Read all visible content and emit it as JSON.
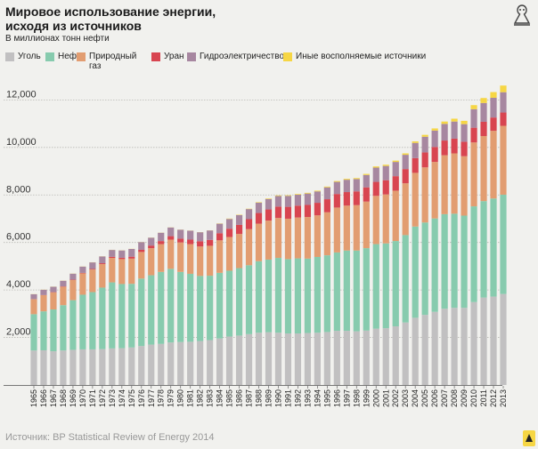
{
  "title": "Мировое использование энергии,\nисходя из источников",
  "subtitle": "В миллионах тонн нефти",
  "source": "Источник: BP Statistical Review of Energy 2014",
  "chart_data": {
    "type": "bar",
    "stacked": true,
    "categories": [
      "1965",
      "1966",
      "1967",
      "1968",
      "1969",
      "1970",
      "1971",
      "1972",
      "1973",
      "1974",
      "1975",
      "1976",
      "1977",
      "1978",
      "1979",
      "1980",
      "1981",
      "1982",
      "1983",
      "1984",
      "1985",
      "1986",
      "1987",
      "1988",
      "1989",
      "1990",
      "1991",
      "1992",
      "1993",
      "1994",
      "1995",
      "1996",
      "1997",
      "1998",
      "1999",
      "2000",
      "2001",
      "2002",
      "2003",
      "2004",
      "2005",
      "2006",
      "2007",
      "2008",
      "2009",
      "2010",
      "2011",
      "2012",
      "2013"
    ],
    "ylim": [
      0,
      12800
    ],
    "yticks": [
      2000,
      4000,
      6000,
      8000,
      10000,
      12000
    ],
    "ytick_labels": [
      "2,000",
      "4,000",
      "6,000",
      "8,000",
      "10,000",
      "12,000"
    ],
    "grid": true,
    "legend_position": "top",
    "series": [
      {
        "name": "Уголь",
        "color": "#c1c0c1",
        "values": [
          1450,
          1460,
          1420,
          1450,
          1480,
          1500,
          1500,
          1510,
          1540,
          1550,
          1580,
          1640,
          1700,
          1730,
          1790,
          1810,
          1820,
          1850,
          1890,
          1960,
          2040,
          2080,
          2140,
          2200,
          2220,
          2200,
          2170,
          2170,
          2190,
          2200,
          2230,
          2280,
          2280,
          2260,
          2290,
          2370,
          2390,
          2470,
          2630,
          2830,
          2950,
          3080,
          3210,
          3250,
          3250,
          3490,
          3680,
          3720,
          3830
        ]
      },
      {
        "name": "Нефть",
        "color": "#87cbae",
        "values": [
          1530,
          1640,
          1760,
          1910,
          2090,
          2300,
          2410,
          2590,
          2780,
          2700,
          2680,
          2840,
          2920,
          3030,
          3100,
          2950,
          2860,
          2740,
          2710,
          2760,
          2770,
          2840,
          2900,
          3010,
          3060,
          3150,
          3130,
          3160,
          3130,
          3190,
          3230,
          3300,
          3380,
          3400,
          3470,
          3560,
          3570,
          3590,
          3680,
          3840,
          3890,
          3930,
          3980,
          3960,
          3880,
          4030,
          4060,
          4130,
          4180
        ]
      },
      {
        "name": "Природный газ",
        "color": "#e29d71",
        "values": [
          630,
          680,
          720,
          780,
          850,
          900,
          950,
          990,
          1030,
          1050,
          1060,
          1120,
          1140,
          1170,
          1230,
          1240,
          1250,
          1240,
          1260,
          1370,
          1420,
          1440,
          1520,
          1580,
          1640,
          1680,
          1700,
          1720,
          1750,
          1750,
          1810,
          1890,
          1890,
          1910,
          1960,
          2030,
          2060,
          2120,
          2180,
          2260,
          2320,
          2380,
          2480,
          2540,
          2500,
          2690,
          2740,
          2850,
          2900
        ]
      },
      {
        "name": "Уран",
        "color": "#d84550",
        "values": [
          5,
          7,
          10,
          12,
          15,
          18,
          26,
          35,
          45,
          55,
          81,
          90,
          110,
          128,
          145,
          160,
          190,
          220,
          250,
          300,
          350,
          380,
          420,
          450,
          470,
          480,
          500,
          500,
          510,
          530,
          550,
          570,
          570,
          580,
          600,
          590,
          600,
          610,
          600,
          620,
          630,
          630,
          620,
          620,
          610,
          620,
          600,
          560,
          560
        ]
      },
      {
        "name": "Гидроэлектричество",
        "color": "#a787a0",
        "values": [
          205,
          220,
          225,
          235,
          250,
          265,
          275,
          285,
          290,
          310,
          325,
          325,
          330,
          350,
          365,
          375,
          375,
          380,
          395,
          400,
          410,
          415,
          425,
          435,
          440,
          445,
          460,
          460,
          480,
          480,
          500,
          510,
          520,
          520,
          520,
          600,
          600,
          600,
          600,
          640,
          660,
          690,
          700,
          720,
          740,
          780,
          790,
          830,
          855
        ]
      },
      {
        "name": "Иные восполняемые источники",
        "color": "#f6d644",
        "values": [
          5,
          5,
          5,
          5,
          5,
          5,
          5,
          5,
          5,
          5,
          5,
          5,
          5,
          5,
          5,
          5,
          5,
          5,
          5,
          10,
          15,
          15,
          15,
          20,
          22,
          25,
          25,
          28,
          30,
          30,
          32,
          35,
          38,
          40,
          45,
          50,
          52,
          55,
          60,
          65,
          80,
          90,
          100,
          120,
          140,
          170,
          210,
          240,
          280
        ]
      }
    ]
  }
}
